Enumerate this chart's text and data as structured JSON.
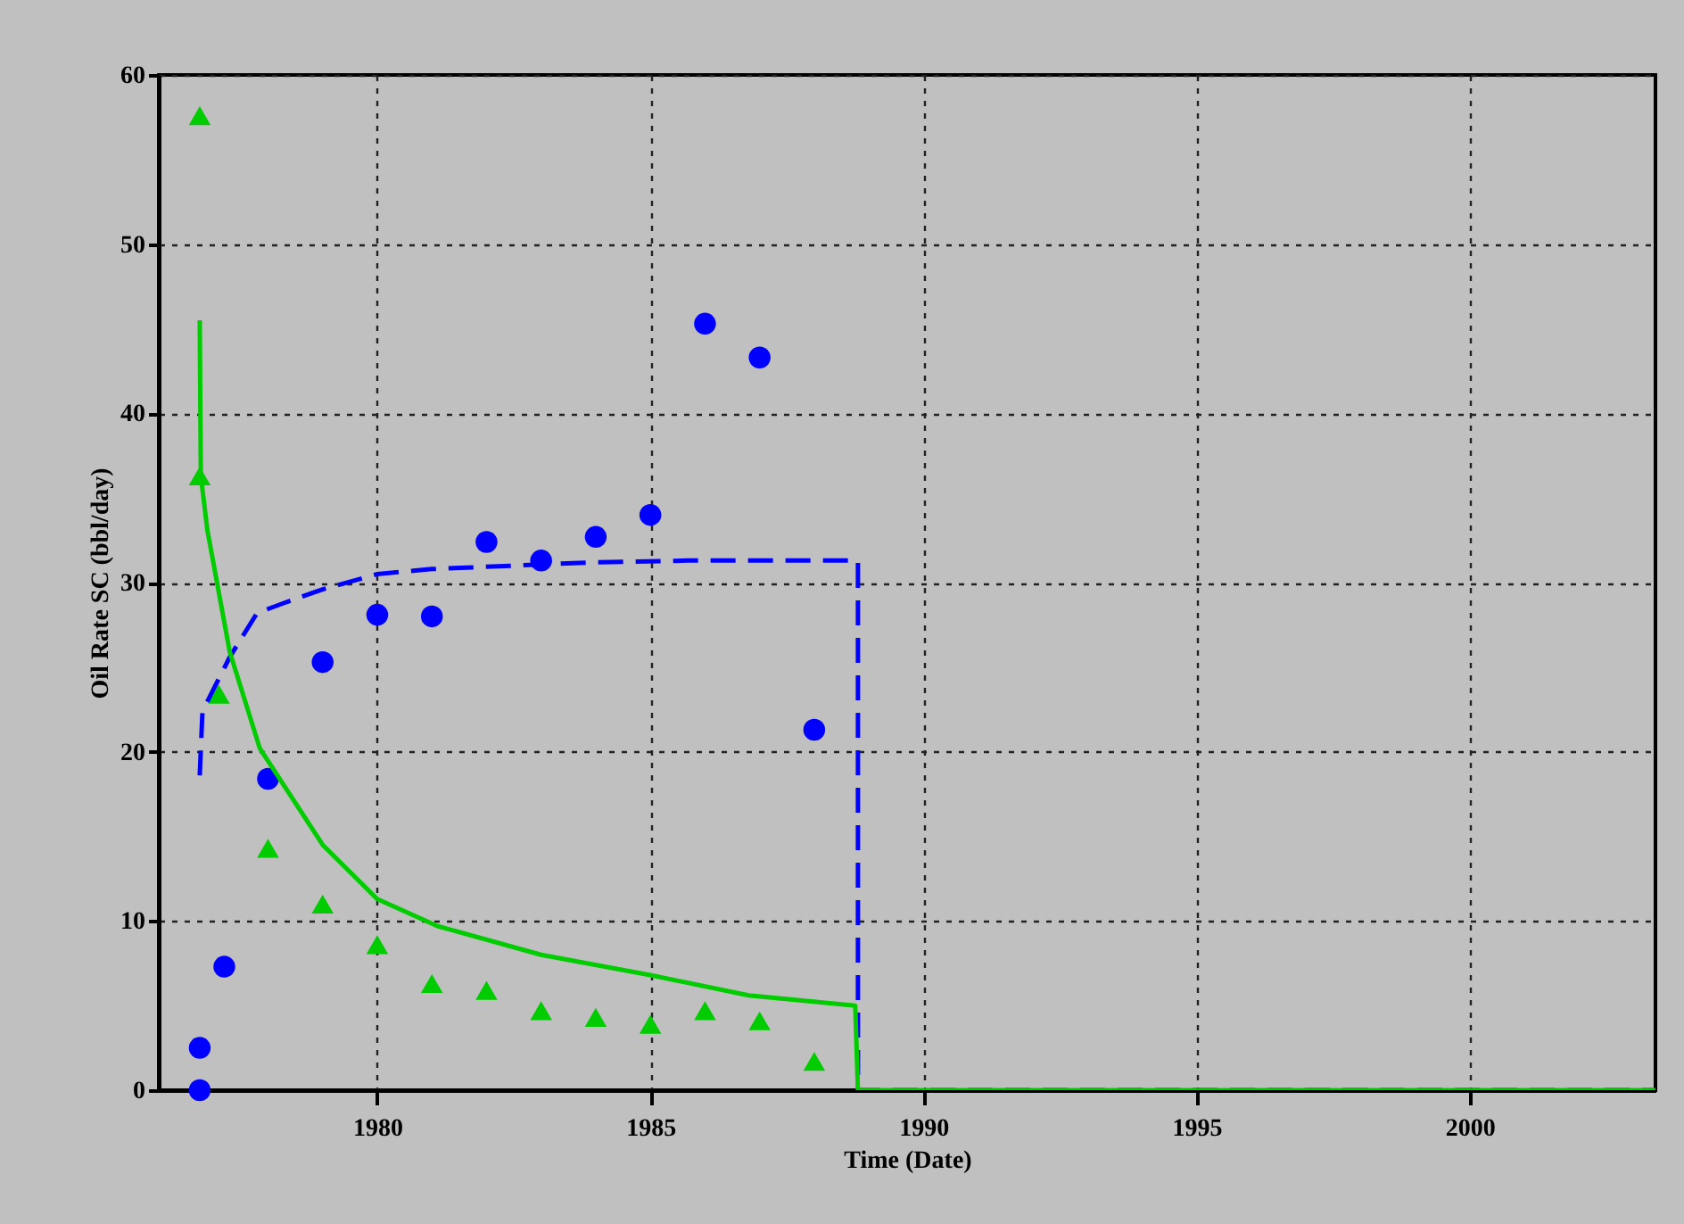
{
  "chart_data": {
    "type": "scatter",
    "xlabel": "Time (Date)",
    "ylabel": "Oil Rate SC (bbl/day)",
    "xlim": [
      1976,
      2003.4
    ],
    "xticks": [
      1980,
      1985,
      1990,
      1995,
      2000
    ],
    "ylim": [
      0,
      60
    ],
    "yticks": [
      0,
      10,
      20,
      30,
      40,
      50,
      60
    ],
    "grid": true,
    "series": [
      {
        "marker": "triangle",
        "color": "#00cc00",
        "x": [
          1976.75,
          1976.75,
          1977.1,
          1978,
          1979,
          1980,
          1981,
          1982,
          1983,
          1984,
          1985,
          1986,
          1987,
          1988
        ],
        "values": [
          57.6,
          36.3,
          23.4,
          14.3,
          11.0,
          8.6,
          6.3,
          5.9,
          4.7,
          4.3,
          3.9,
          4.7,
          4.1,
          1.7
        ]
      },
      {
        "marker": "circle",
        "color": "#0000ff",
        "x": [
          1976.75,
          1976.75,
          1977.2,
          1978,
          1979,
          1980,
          1981,
          1982,
          1983,
          1984,
          1985,
          1986,
          1987,
          1988
        ],
        "values": [
          0,
          2.5,
          7.3,
          18.4,
          25.3,
          28.1,
          28.0,
          32.4,
          31.3,
          32.7,
          34.0,
          45.3,
          43.3,
          21.3
        ]
      },
      {
        "type": "line",
        "line_style": "dashed",
        "color": "#0000ff",
        "x": [
          1976.75,
          1976.8,
          1977.3,
          1977.8,
          1978.3,
          1979,
          1980,
          1981,
          1984,
          1985.7,
          1988.8,
          1988.8,
          2003.4
        ],
        "values": [
          18.6,
          22.4,
          25.6,
          28.2,
          28.8,
          29.6,
          30.5,
          30.8,
          31.2,
          31.3,
          31.3,
          0,
          0
        ]
      },
      {
        "type": "line",
        "line_style": "solid",
        "color": "#00cc00",
        "x": [
          1976.75,
          1976.77,
          1976.89,
          1977.3,
          1977.85,
          1979,
          1980,
          1981.1,
          1983,
          1985,
          1986.8,
          1988.75,
          1988.8,
          2003.4
        ],
        "values": [
          45.5,
          36.3,
          33.1,
          25.9,
          20.2,
          14.5,
          11.3,
          9.7,
          8.0,
          6.8,
          5.6,
          5.0,
          0,
          0
        ]
      }
    ]
  }
}
